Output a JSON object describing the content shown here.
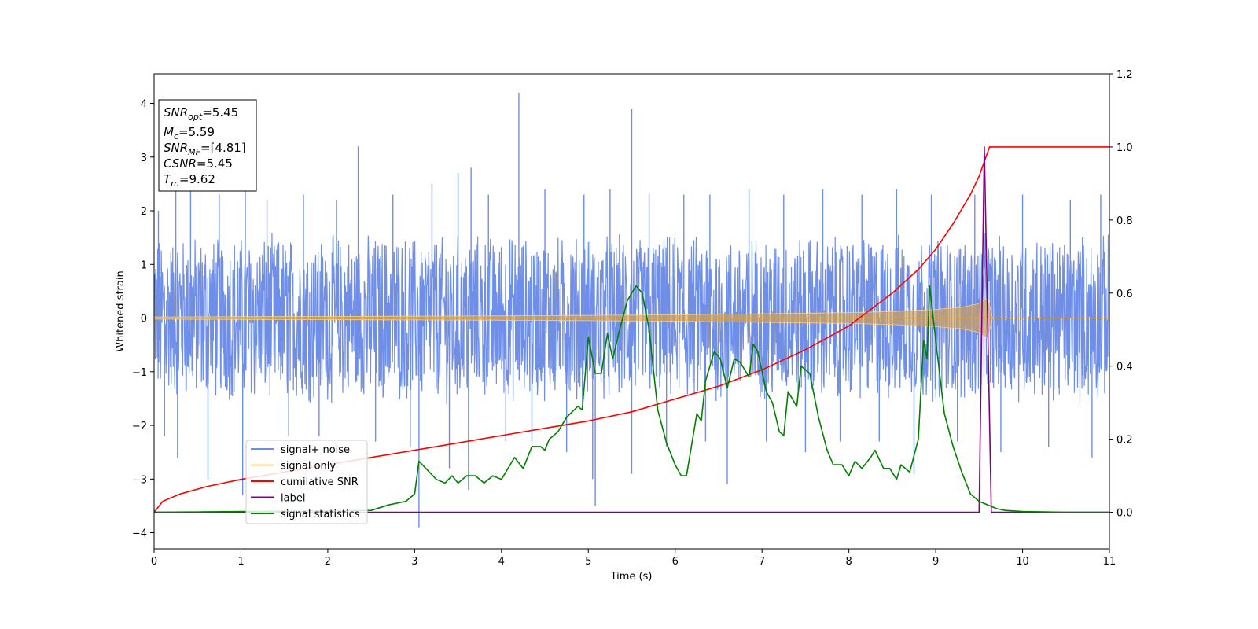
{
  "chart_data": {
    "type": "line",
    "xlabel": "Time (s)",
    "ylabel": "Whitened strain",
    "xlim": [
      0,
      11
    ],
    "ylim": [
      -4.3,
      4.55
    ],
    "y2lim": [
      -0.1,
      1.2
    ],
    "x_ticks": [
      "0",
      "1",
      "2",
      "3",
      "4",
      "5",
      "6",
      "7",
      "8",
      "9",
      "10",
      "11"
    ],
    "y_ticks": [
      "4",
      "3",
      "2",
      "1",
      "0",
      "−1",
      "−2",
      "−3",
      "−4"
    ],
    "y_tick_values": [
      4,
      3,
      2,
      1,
      0,
      -1,
      -2,
      -3,
      -4
    ],
    "y2_ticks": [
      "1.2",
      "1.0",
      "0.8",
      "0.6",
      "0.4",
      "0.2",
      "0.0"
    ],
    "y2_tick_values": [
      1.2,
      1.0,
      0.8,
      0.6,
      0.4,
      0.2,
      0.0
    ],
    "legend_position": "lower-left",
    "legend": [
      {
        "label": "signal+ noise",
        "color": "#6f8ee8"
      },
      {
        "label": "signal only",
        "color": "#ffd27a"
      },
      {
        "label": "cumilative SNR",
        "color": "#ff0000"
      },
      {
        "label": "label",
        "color": "#800080"
      },
      {
        "label": "signal statistics",
        "color": "#008000"
      }
    ],
    "annotation": [
      {
        "sym": "SNR",
        "sub": "opt",
        "val": "=5.45"
      },
      {
        "sym": "M",
        "sub": "c",
        "val": "=5.59"
      },
      {
        "sym": "SNR",
        "sub": "MF",
        "val": "=[4.81]"
      },
      {
        "sym": "CSNR",
        "sub": "",
        "val": "=5.45"
      },
      {
        "sym": "T",
        "sub": "m",
        "val": "=9.62"
      }
    ],
    "series": [
      {
        "name": "signal+ noise",
        "axis": "left",
        "color": "#6f8ee8",
        "kind": "noise",
        "band": [
          -1.4,
          1.4
        ],
        "spikes": [
          [
            0.05,
            2.0
          ],
          [
            0.12,
            -2.2
          ],
          [
            0.25,
            2.4
          ],
          [
            0.27,
            -2.6
          ],
          [
            0.42,
            2.4
          ],
          [
            0.62,
            -3.0
          ],
          [
            0.75,
            2.3
          ],
          [
            1.02,
            -3.3
          ],
          [
            1.05,
            2.5
          ],
          [
            1.3,
            2.2
          ],
          [
            1.55,
            -2.2
          ],
          [
            1.72,
            2.3
          ],
          [
            1.9,
            -2.2
          ],
          [
            2.1,
            2.2
          ],
          [
            2.35,
            3.2
          ],
          [
            2.55,
            -2.3
          ],
          [
            2.75,
            2.3
          ],
          [
            2.95,
            -2.4
          ],
          [
            3.05,
            -3.9
          ],
          [
            3.2,
            2.5
          ],
          [
            3.4,
            -2.8
          ],
          [
            3.5,
            2.7
          ],
          [
            3.62,
            -3.2
          ],
          [
            3.65,
            2.8
          ],
          [
            3.85,
            2.3
          ],
          [
            4.05,
            -2.3
          ],
          [
            4.2,
            4.2
          ],
          [
            4.35,
            -2.3
          ],
          [
            4.5,
            2.4
          ],
          [
            4.75,
            -2.5
          ],
          [
            4.95,
            2.3
          ],
          [
            5.05,
            -3.0
          ],
          [
            5.08,
            -3.5
          ],
          [
            5.25,
            2.4
          ],
          [
            5.5,
            3.9
          ],
          [
            5.5,
            -2.9
          ],
          [
            5.7,
            2.3
          ],
          [
            5.9,
            -2.4
          ],
          [
            6.1,
            2.3
          ],
          [
            6.35,
            -2.3
          ],
          [
            6.4,
            2.3
          ],
          [
            6.6,
            -3.1
          ],
          [
            6.85,
            2.4
          ],
          [
            7.05,
            -2.3
          ],
          [
            7.25,
            2.3
          ],
          [
            7.5,
            -2.5
          ],
          [
            7.7,
            2.4
          ],
          [
            7.9,
            -2.3
          ],
          [
            8.15,
            2.3
          ],
          [
            8.35,
            -2.3
          ],
          [
            8.55,
            2.4
          ],
          [
            8.75,
            -2.9
          ],
          [
            8.95,
            2.3
          ],
          [
            9.25,
            -2.3
          ],
          [
            9.45,
            2.3
          ],
          [
            9.75,
            -2.5
          ],
          [
            10.0,
            2.3
          ],
          [
            10.3,
            -2.4
          ],
          [
            10.55,
            2.2
          ],
          [
            10.8,
            -2.6
          ],
          [
            10.9,
            2.3
          ]
        ]
      },
      {
        "name": "signal only",
        "axis": "left",
        "color": "#ffd27a",
        "kind": "chirp_envelope",
        "x": [
          0,
          2,
          4,
          6,
          7,
          8,
          8.5,
          9,
          9.3,
          9.5,
          9.62,
          9.63,
          11
        ],
        "amplitude": [
          0.02,
          0.03,
          0.04,
          0.06,
          0.08,
          0.1,
          0.12,
          0.16,
          0.2,
          0.27,
          0.4,
          0.0,
          0.0
        ]
      },
      {
        "name": "cumilative SNR",
        "axis": "right",
        "color": "#ff0000",
        "kind": "line",
        "x": [
          0,
          0.1,
          0.3,
          0.6,
          1,
          1.5,
          2,
          2.5,
          3,
          3.5,
          4,
          4.5,
          5,
          5.5,
          6,
          6.5,
          7,
          7.5,
          8,
          8.5,
          8.8,
          9,
          9.2,
          9.4,
          9.5,
          9.56,
          9.62,
          10,
          11
        ],
        "y": [
          0.0,
          0.03,
          0.05,
          0.07,
          0.09,
          0.11,
          0.13,
          0.15,
          0.17,
          0.19,
          0.21,
          0.23,
          0.25,
          0.275,
          0.31,
          0.345,
          0.39,
          0.445,
          0.51,
          0.6,
          0.665,
          0.72,
          0.79,
          0.87,
          0.92,
          0.96,
          1.0,
          1.0,
          1.0
        ]
      },
      {
        "name": "label",
        "axis": "right",
        "color": "#800080",
        "kind": "line",
        "x": [
          0,
          9.5,
          9.56,
          9.64,
          11
        ],
        "y": [
          0,
          0,
          1,
          0,
          0
        ]
      },
      {
        "name": "signal statistics",
        "axis": "right",
        "color": "#008000",
        "kind": "line",
        "x": [
          0,
          2.5,
          2.7,
          2.8,
          2.9,
          3.0,
          3.05,
          3.13,
          3.25,
          3.35,
          3.43,
          3.5,
          3.6,
          3.7,
          3.8,
          3.9,
          4.0,
          4.15,
          4.25,
          4.35,
          4.45,
          4.5,
          4.55,
          4.65,
          4.75,
          4.88,
          4.93,
          5.0,
          5.08,
          5.15,
          5.22,
          5.28,
          5.35,
          5.45,
          5.55,
          5.62,
          5.7,
          5.8,
          5.9,
          6.0,
          6.07,
          6.13,
          6.25,
          6.3,
          6.35,
          6.45,
          6.52,
          6.6,
          6.68,
          6.75,
          6.85,
          6.9,
          6.95,
          7.05,
          7.12,
          7.2,
          7.25,
          7.3,
          7.4,
          7.45,
          7.55,
          7.65,
          7.75,
          7.82,
          7.92,
          8.0,
          8.07,
          8.15,
          8.25,
          8.3,
          8.4,
          8.47,
          8.55,
          8.6,
          8.7,
          8.8,
          8.86,
          8.9,
          8.93,
          9.0,
          9.1,
          9.2,
          9.3,
          9.4,
          9.5,
          9.6,
          9.7,
          9.8,
          10.0,
          10.5,
          11.0
        ],
        "y": [
          0.0,
          0.005,
          0.02,
          0.025,
          0.03,
          0.05,
          0.14,
          0.12,
          0.09,
          0.08,
          0.1,
          0.08,
          0.1,
          0.1,
          0.08,
          0.1,
          0.09,
          0.15,
          0.12,
          0.18,
          0.18,
          0.17,
          0.2,
          0.22,
          0.26,
          0.29,
          0.28,
          0.48,
          0.38,
          0.38,
          0.49,
          0.42,
          0.49,
          0.58,
          0.62,
          0.6,
          0.5,
          0.28,
          0.19,
          0.13,
          0.1,
          0.1,
          0.27,
          0.25,
          0.36,
          0.44,
          0.42,
          0.34,
          0.42,
          0.41,
          0.37,
          0.46,
          0.44,
          0.33,
          0.3,
          0.22,
          0.21,
          0.33,
          0.29,
          0.4,
          0.38,
          0.26,
          0.17,
          0.13,
          0.13,
          0.1,
          0.14,
          0.12,
          0.15,
          0.17,
          0.12,
          0.12,
          0.09,
          0.13,
          0.11,
          0.2,
          0.47,
          0.42,
          0.62,
          0.47,
          0.27,
          0.18,
          0.11,
          0.05,
          0.03,
          0.02,
          0.01,
          0.005,
          0.002,
          0.0,
          0.0
        ]
      }
    ]
  }
}
